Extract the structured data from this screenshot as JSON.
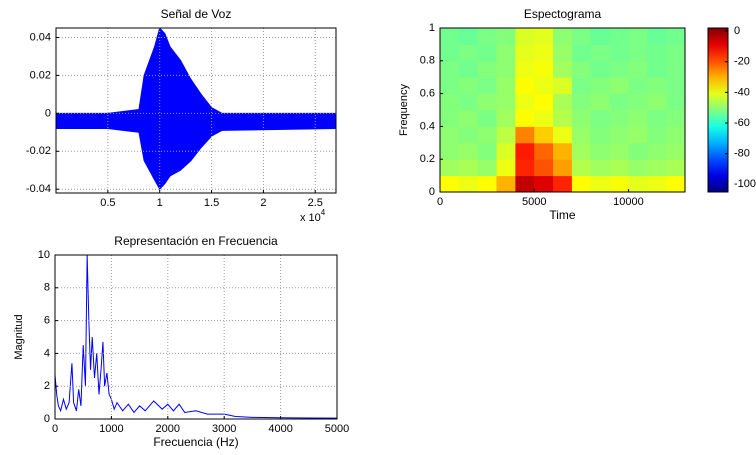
{
  "chart_data": [
    {
      "type": "envelope",
      "title": "Señal de Voz",
      "x_scale_label": "x 10",
      "x_scale_exponent": "4",
      "x": [
        0,
        0.5,
        0.8,
        0.85,
        0.95,
        1.0,
        1.05,
        1.1,
        1.2,
        1.3,
        1.4,
        1.5,
        1.6,
        2.7
      ],
      "upper": [
        0,
        0,
        0.002,
        0.02,
        0.035,
        0.045,
        0.042,
        0.035,
        0.028,
        0.018,
        0.01,
        0.003,
        0,
        0
      ],
      "lower": [
        -0.008,
        -0.008,
        -0.01,
        -0.025,
        -0.035,
        -0.04,
        -0.037,
        -0.033,
        -0.03,
        -0.025,
        -0.018,
        -0.012,
        -0.009,
        -0.008
      ],
      "color": "#0000ff",
      "xlim": [
        0,
        2.7
      ],
      "xticks": [
        0.5,
        1,
        1.5,
        2,
        2.5
      ],
      "ylim": [
        -0.042,
        0.045
      ],
      "yticks": [
        -0.04,
        -0.02,
        0,
        0.02,
        0.04
      ],
      "grid": true
    },
    {
      "type": "heatmap",
      "title": "Espectograma",
      "xlabel": "Time",
      "ylabel": "Frequency",
      "colormap": "jet",
      "x": [
        500,
        1500,
        2500,
        3500,
        4500,
        5500,
        6500,
        7500,
        8500,
        9500,
        10500,
        11500,
        12500
      ],
      "y": [
        0.05,
        0.15,
        0.25,
        0.35,
        0.45,
        0.55,
        0.65,
        0.75,
        0.85,
        0.95
      ],
      "z": [
        [
          -38,
          -40,
          -38,
          -30,
          -5,
          -8,
          -15,
          -38,
          -40,
          -39,
          -41,
          -40,
          -38
        ],
        [
          -48,
          -47,
          -49,
          -40,
          -15,
          -20,
          -28,
          -46,
          -48,
          -47,
          -49,
          -48,
          -47
        ],
        [
          -50,
          -49,
          -51,
          -42,
          -14,
          -22,
          -30,
          -48,
          -50,
          -49,
          -51,
          -50,
          -49
        ],
        [
          -50,
          -51,
          -50,
          -45,
          -25,
          -33,
          -40,
          -49,
          -51,
          -50,
          -49,
          -51,
          -50
        ],
        [
          -51,
          -50,
          -52,
          -48,
          -38,
          -40,
          -46,
          -50,
          -52,
          -51,
          -50,
          -52,
          -51
        ],
        [
          -51,
          -52,
          -50,
          -49,
          -40,
          -38,
          -47,
          -51,
          -50,
          -52,
          -51,
          -50,
          -52
        ],
        [
          -52,
          -51,
          -52,
          -49,
          -38,
          -40,
          -42,
          -52,
          -51,
          -50,
          -52,
          -51,
          -52
        ],
        [
          -52,
          -53,
          -51,
          -50,
          -40,
          -39,
          -48,
          -51,
          -53,
          -52,
          -51,
          -53,
          -52
        ],
        [
          -53,
          -52,
          -53,
          -50,
          -41,
          -40,
          -49,
          -53,
          -52,
          -53,
          -52,
          -53,
          -52
        ],
        [
          -53,
          -54,
          -52,
          -51,
          -42,
          -41,
          -50,
          -52,
          -54,
          -53,
          -52,
          -54,
          -53
        ]
      ],
      "xlim": [
        0,
        13000
      ],
      "xticks": [
        0,
        5000,
        10000
      ],
      "ylim": [
        0,
        1
      ],
      "yticks": [
        0,
        0.2,
        0.4,
        0.6,
        0.8,
        1
      ],
      "clim": [
        -105,
        2
      ],
      "colorbar_ticks": [
        0,
        -20,
        -40,
        -60,
        -80,
        -100
      ]
    },
    {
      "type": "line",
      "title": "Representación en Frecuencia",
      "xlabel": "Frecuencia (Hz)",
      "ylabel": "Magnitud",
      "x": [
        0,
        30,
        60,
        100,
        150,
        200,
        250,
        300,
        330,
        380,
        420,
        460,
        500,
        540,
        570,
        600,
        630,
        660,
        700,
        740,
        780,
        820,
        850,
        880,
        920,
        960,
        1000,
        1050,
        1100,
        1200,
        1300,
        1400,
        1500,
        1600,
        1750,
        1900,
        2000,
        2100,
        2200,
        2300,
        2500,
        2700,
        3000,
        3200,
        3500,
        4000,
        4500,
        5000
      ],
      "values": [
        2.7,
        1.5,
        0.8,
        0.5,
        1.2,
        0.6,
        1.0,
        3.4,
        1.0,
        0.5,
        1.8,
        0.8,
        4.5,
        2.0,
        10,
        6,
        3,
        5.0,
        2.5,
        4.0,
        1.5,
        3.2,
        4.7,
        2.0,
        2.8,
        1.5,
        1.2,
        0.6,
        1.0,
        0.5,
        0.9,
        0.4,
        0.8,
        0.5,
        1.1,
        0.6,
        0.9,
        0.5,
        0.9,
        0.4,
        0.5,
        0.3,
        0.3,
        0.15,
        0.1,
        0.08,
        0.06,
        0.05
      ],
      "color": "#0000ff",
      "xlim": [
        0,
        5000
      ],
      "xticks": [
        0,
        1000,
        2000,
        3000,
        4000,
        5000
      ],
      "ylim": [
        0,
        10
      ],
      "yticks": [
        0,
        2,
        4,
        6,
        8,
        10
      ],
      "grid": true
    }
  ]
}
